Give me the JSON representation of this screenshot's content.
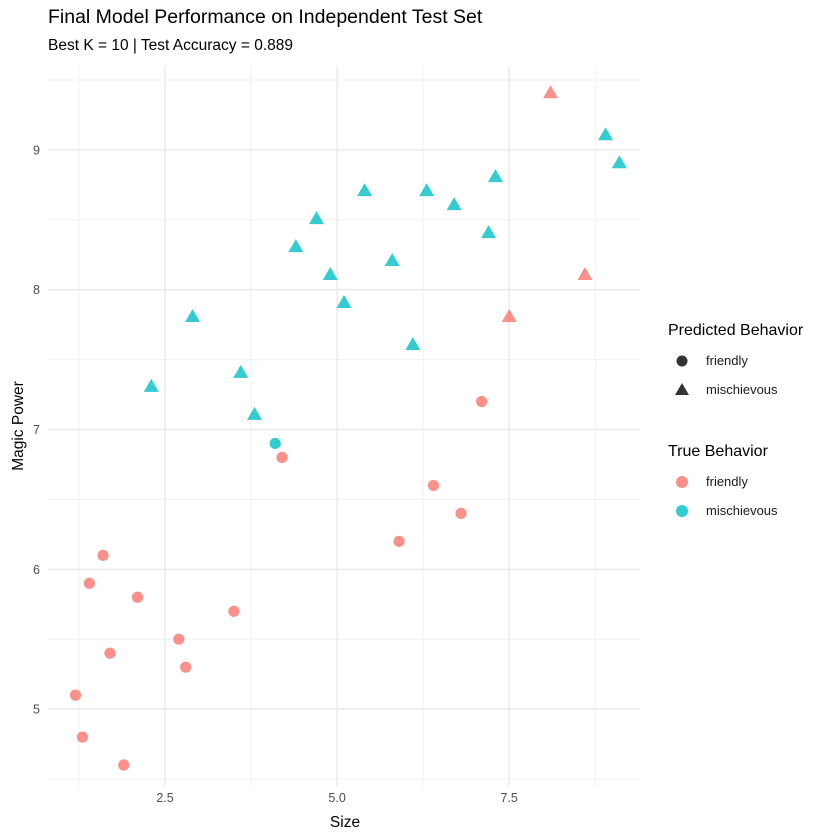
{
  "chart_data": {
    "type": "scatter",
    "title": "Final Model Performance on Independent Test Set",
    "subtitle": "Best K = 10 | Test Accuracy = 0.889",
    "xlabel": "Size",
    "ylabel": "Magic Power",
    "xlim": [
      0.8,
      9.4
    ],
    "ylim": [
      4.45,
      9.6
    ],
    "x_ticks": [
      2.5,
      5.0,
      7.5
    ],
    "x_tick_labels": [
      "2.5",
      "5.0",
      "7.5"
    ],
    "x_minor_ticks": [
      1.25,
      3.75,
      6.25,
      8.75
    ],
    "y_ticks": [
      5,
      6,
      7,
      8,
      9
    ],
    "y_tick_labels": [
      "5",
      "6",
      "7",
      "8",
      "9"
    ],
    "y_minor_ticks": [
      4.5,
      5.5,
      6.5,
      7.5,
      8.5,
      9.5
    ],
    "grid": true,
    "colors": {
      "friendly": "#F8766D",
      "mischievous": "#00BFC4"
    },
    "legend_position": "right",
    "legends": [
      {
        "title": "Predicted Behavior",
        "aesthetic": "shape",
        "entries": [
          {
            "label": "friendly",
            "shape": "circle"
          },
          {
            "label": "mischievous",
            "shape": "triangle"
          }
        ]
      },
      {
        "title": "True Behavior",
        "aesthetic": "color",
        "entries": [
          {
            "label": "friendly",
            "color": "#F8766D"
          },
          {
            "label": "mischievous",
            "color": "#00BFC4"
          }
        ]
      }
    ],
    "points": [
      {
        "x": 1.6,
        "y": 6.1,
        "true": "friendly",
        "predicted": "friendly"
      },
      {
        "x": 1.4,
        "y": 5.9,
        "true": "friendly",
        "predicted": "friendly"
      },
      {
        "x": 2.1,
        "y": 5.8,
        "true": "friendly",
        "predicted": "friendly"
      },
      {
        "x": 3.5,
        "y": 5.7,
        "true": "friendly",
        "predicted": "friendly"
      },
      {
        "x": 2.7,
        "y": 5.5,
        "true": "friendly",
        "predicted": "friendly"
      },
      {
        "x": 1.7,
        "y": 5.4,
        "true": "friendly",
        "predicted": "friendly"
      },
      {
        "x": 2.8,
        "y": 5.3,
        "true": "friendly",
        "predicted": "friendly"
      },
      {
        "x": 1.2,
        "y": 5.1,
        "true": "friendly",
        "predicted": "friendly"
      },
      {
        "x": 1.3,
        "y": 4.8,
        "true": "friendly",
        "predicted": "friendly"
      },
      {
        "x": 1.9,
        "y": 4.6,
        "true": "friendly",
        "predicted": "friendly"
      },
      {
        "x": 4.2,
        "y": 6.8,
        "true": "friendly",
        "predicted": "friendly"
      },
      {
        "x": 7.1,
        "y": 7.2,
        "true": "friendly",
        "predicted": "friendly"
      },
      {
        "x": 6.4,
        "y": 6.6,
        "true": "friendly",
        "predicted": "friendly"
      },
      {
        "x": 6.8,
        "y": 6.4,
        "true": "friendly",
        "predicted": "friendly"
      },
      {
        "x": 5.9,
        "y": 6.2,
        "true": "friendly",
        "predicted": "friendly"
      },
      {
        "x": 4.1,
        "y": 6.9,
        "true": "mischievous",
        "predicted": "friendly"
      },
      {
        "x": 2.9,
        "y": 7.8,
        "true": "mischievous",
        "predicted": "mischievous"
      },
      {
        "x": 2.3,
        "y": 7.3,
        "true": "mischievous",
        "predicted": "mischievous"
      },
      {
        "x": 3.6,
        "y": 7.4,
        "true": "mischievous",
        "predicted": "mischievous"
      },
      {
        "x": 3.8,
        "y": 7.1,
        "true": "mischievous",
        "predicted": "mischievous"
      },
      {
        "x": 5.4,
        "y": 8.7,
        "true": "mischievous",
        "predicted": "mischievous"
      },
      {
        "x": 6.3,
        "y": 8.7,
        "true": "mischievous",
        "predicted": "mischievous"
      },
      {
        "x": 7.3,
        "y": 8.8,
        "true": "mischievous",
        "predicted": "mischievous"
      },
      {
        "x": 6.7,
        "y": 8.6,
        "true": "mischievous",
        "predicted": "mischievous"
      },
      {
        "x": 4.7,
        "y": 8.5,
        "true": "mischievous",
        "predicted": "mischievous"
      },
      {
        "x": 7.2,
        "y": 8.4,
        "true": "mischievous",
        "predicted": "mischievous"
      },
      {
        "x": 4.4,
        "y": 8.3,
        "true": "mischievous",
        "predicted": "mischievous"
      },
      {
        "x": 5.8,
        "y": 8.2,
        "true": "mischievous",
        "predicted": "mischievous"
      },
      {
        "x": 4.9,
        "y": 8.1,
        "true": "mischievous",
        "predicted": "mischievous"
      },
      {
        "x": 5.1,
        "y": 7.9,
        "true": "mischievous",
        "predicted": "mischievous"
      },
      {
        "x": 6.1,
        "y": 7.6,
        "true": "mischievous",
        "predicted": "mischievous"
      },
      {
        "x": 8.9,
        "y": 9.1,
        "true": "mischievous",
        "predicted": "mischievous"
      },
      {
        "x": 9.1,
        "y": 8.9,
        "true": "mischievous",
        "predicted": "mischievous"
      },
      {
        "x": 7.5,
        "y": 7.8,
        "true": "friendly",
        "predicted": "mischievous"
      },
      {
        "x": 8.1,
        "y": 9.4,
        "true": "friendly",
        "predicted": "mischievous"
      },
      {
        "x": 8.6,
        "y": 8.1,
        "true": "friendly",
        "predicted": "mischievous"
      }
    ]
  }
}
